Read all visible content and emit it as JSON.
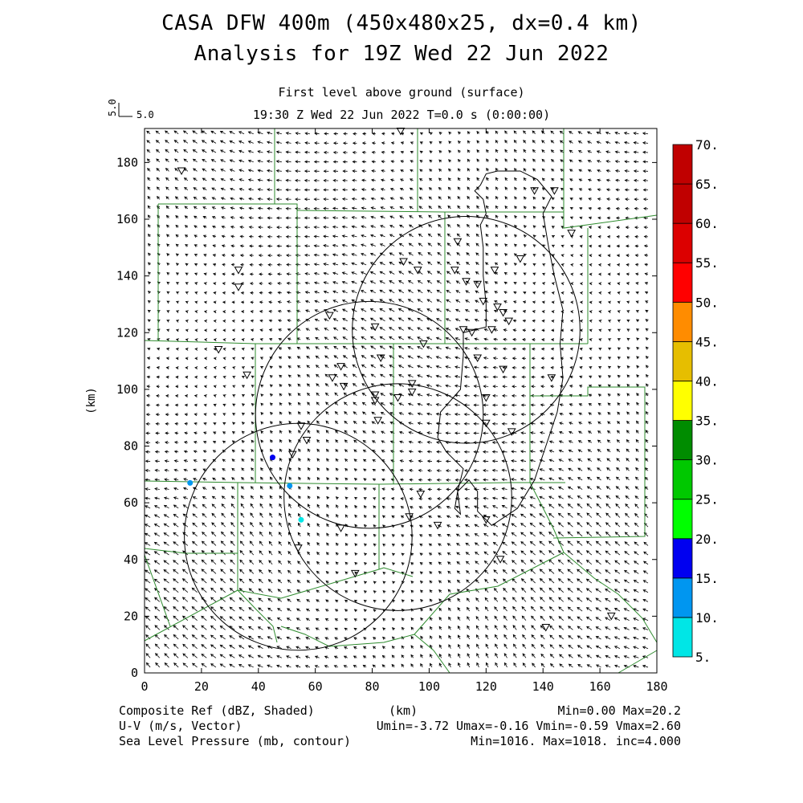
{
  "title": "CASA DFW 400m (450x480x25, dx=0.4 km)",
  "subtitle": "Analysis for 19Z Wed 22 Jun 2022",
  "level_label": "First level above ground (surface)",
  "time_label": "19:30 Z Wed 22 Jun 2022    T=0.0 s (0:00:00)",
  "ref_vector": {
    "rotated_label": "5.0",
    "label": "5.0"
  },
  "colorbar": {
    "levels": [
      "5.",
      "10.",
      "15.",
      "20.",
      "25.",
      "30.",
      "35.",
      "40.",
      "45.",
      "50.",
      "55.",
      "60.",
      "65.",
      "70."
    ],
    "colors": [
      "#00e6e6",
      "#0096f0",
      "#0000f0",
      "#00ff00",
      "#00c800",
      "#008c00",
      "#ffff00",
      "#e6be00",
      "#ff8c00",
      "#ff0000",
      "#dc0000",
      "#c00000",
      "#c00000",
      "#ff00ff"
    ]
  },
  "footer": {
    "left1": "Composite Ref (dBZ, Shaded)",
    "left2": "U-V (m/s, Vector)",
    "left3": "Sea Level Pressure (mb, contour)",
    "center": "(km)",
    "right1": "Min=0.00 Max=20.2",
    "right2": "Umin=-3.72 Umax=-0.16 Vmin=-0.59 Vmax=2.60",
    "right3": "Min=1016. Max=1018. inc=4.000"
  },
  "chart_data": {
    "type": "contour-vector map",
    "xlabel": "(km)",
    "ylabel": "(km)",
    "xlim": [
      0,
      180
    ],
    "ylim": [
      0,
      192
    ],
    "xticks": [
      "0",
      "20",
      "40",
      "60",
      "80",
      "100",
      "120",
      "140",
      "160",
      "180"
    ],
    "yticks": [
      "0",
      "20",
      "40",
      "60",
      "80",
      "100",
      "120",
      "140",
      "160",
      "180"
    ],
    "radar_coverage_circles": [
      {
        "center_km": [
          113,
          121
        ],
        "radius_km": 40
      },
      {
        "center_km": [
          79,
          91
        ],
        "radius_km": 40
      },
      {
        "center_km": [
          89,
          62
        ],
        "radius_km": 40
      },
      {
        "center_km": [
          54,
          48
        ],
        "radius_km": 40
      }
    ],
    "pressure_contour_km": [
      [
        118,
        172
      ],
      [
        120,
        176
      ],
      [
        124,
        177
      ],
      [
        132,
        177
      ],
      [
        138,
        174
      ],
      [
        143,
        168
      ],
      [
        140,
        162
      ],
      [
        142,
        150
      ],
      [
        144,
        140
      ],
      [
        147,
        128
      ],
      [
        146,
        116
      ],
      [
        147,
        104
      ],
      [
        145,
        92
      ],
      [
        141,
        80
      ],
      [
        137,
        68
      ],
      [
        131,
        58
      ],
      [
        122,
        52
      ],
      [
        117,
        57
      ],
      [
        117,
        64
      ],
      [
        114,
        68
      ],
      [
        110,
        64
      ],
      [
        109,
        58
      ],
      [
        111,
        56
      ],
      [
        110,
        64
      ],
      [
        112,
        72
      ],
      [
        106,
        78
      ],
      [
        103,
        83
      ],
      [
        104,
        92
      ],
      [
        111,
        100
      ],
      [
        112,
        112
      ],
      [
        112,
        120
      ],
      [
        120,
        122
      ],
      [
        120,
        130
      ],
      [
        119,
        140
      ],
      [
        119,
        150
      ],
      [
        118,
        158
      ],
      [
        120,
        162
      ],
      [
        119,
        167
      ],
      [
        116,
        170
      ],
      [
        118,
        172
      ]
    ],
    "station_markers_km": [
      [
        13,
        177
      ],
      [
        26,
        114
      ],
      [
        33,
        142
      ],
      [
        33,
        136
      ],
      [
        36,
        105
      ],
      [
        55,
        87
      ],
      [
        57,
        82
      ],
      [
        52,
        77
      ],
      [
        65,
        126
      ],
      [
        69,
        108
      ],
      [
        66,
        104
      ],
      [
        70,
        101
      ],
      [
        81,
        122
      ],
      [
        83,
        111
      ],
      [
        81,
        98
      ],
      [
        81,
        96
      ],
      [
        82,
        89
      ],
      [
        90,
        191
      ],
      [
        89,
        97
      ],
      [
        94,
        102
      ],
      [
        94,
        99
      ],
      [
        98,
        116
      ],
      [
        91,
        145
      ],
      [
        96,
        142
      ],
      [
        110,
        152
      ],
      [
        109,
        142
      ],
      [
        113,
        138
      ],
      [
        117,
        137
      ],
      [
        119,
        131
      ],
      [
        123,
        142
      ],
      [
        122,
        121
      ],
      [
        115,
        120
      ],
      [
        117,
        111
      ],
      [
        120,
        97
      ],
      [
        120,
        88
      ],
      [
        126,
        107
      ],
      [
        129,
        85
      ],
      [
        124,
        129
      ],
      [
        126,
        127
      ],
      [
        128,
        124
      ],
      [
        132,
        146
      ],
      [
        137,
        170
      ],
      [
        143,
        104
      ],
      [
        150,
        155
      ],
      [
        144,
        170
      ],
      [
        112,
        121
      ],
      [
        103,
        52
      ],
      [
        120,
        54
      ],
      [
        125,
        40
      ],
      [
        93,
        55
      ],
      [
        97,
        63
      ],
      [
        69,
        51
      ],
      [
        74,
        35
      ],
      [
        54,
        44
      ],
      [
        141,
        16
      ],
      [
        164,
        20
      ]
    ],
    "reflectivity_echoes": [
      {
        "x_km": 45,
        "y_km": 76,
        "dbz": 15
      },
      {
        "x_km": 16,
        "y_km": 67,
        "dbz": 10
      },
      {
        "x_km": 51,
        "y_km": 66,
        "dbz": 10
      },
      {
        "x_km": 55,
        "y_km": 54,
        "dbz": 5
      }
    ],
    "field_stats": {
      "reflectivity_min": 0.0,
      "reflectivity_max": 20.2,
      "u_min": -3.72,
      "u_max": -0.16,
      "v_min": -0.59,
      "v_max": 2.6,
      "pressure_min": 1016.0,
      "pressure_max": 1018.0,
      "pressure_inc": 4.0
    }
  }
}
